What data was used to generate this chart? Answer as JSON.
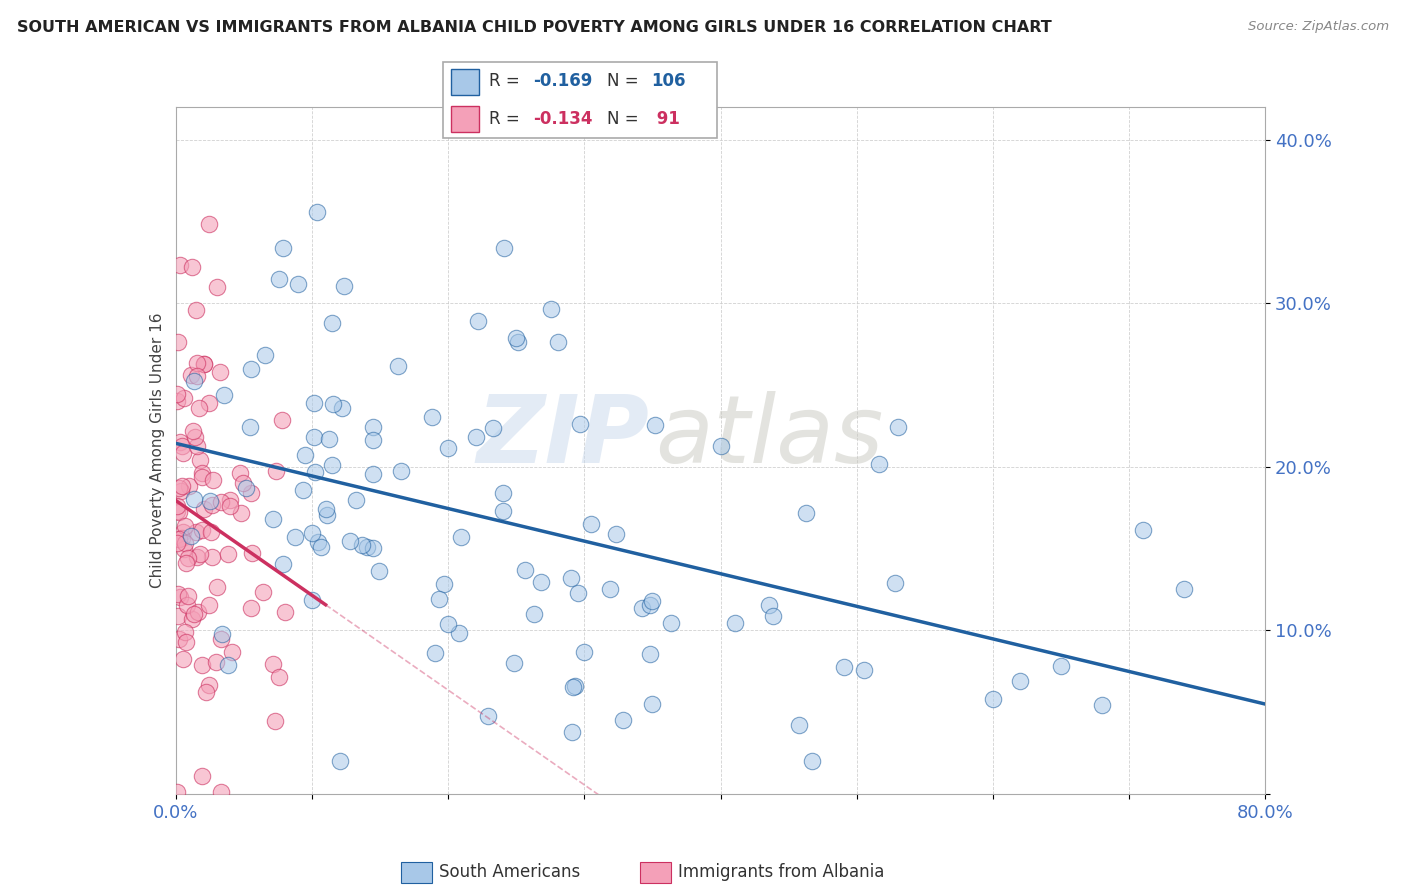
{
  "title": "SOUTH AMERICAN VS IMMIGRANTS FROM ALBANIA CHILD POVERTY AMONG GIRLS UNDER 16 CORRELATION CHART",
  "source": "Source: ZipAtlas.com",
  "ylabel": "Child Poverty Among Girls Under 16",
  "xlim": [
    0.0,
    0.8
  ],
  "ylim": [
    0.0,
    0.42
  ],
  "color_blue": "#a8c8e8",
  "color_pink": "#f4a0b8",
  "trendline_blue": "#2060a0",
  "trendline_pink": "#cc3060",
  "watermark_zip": "ZIP",
  "watermark_atlas": "atlas",
  "seed": 12345
}
